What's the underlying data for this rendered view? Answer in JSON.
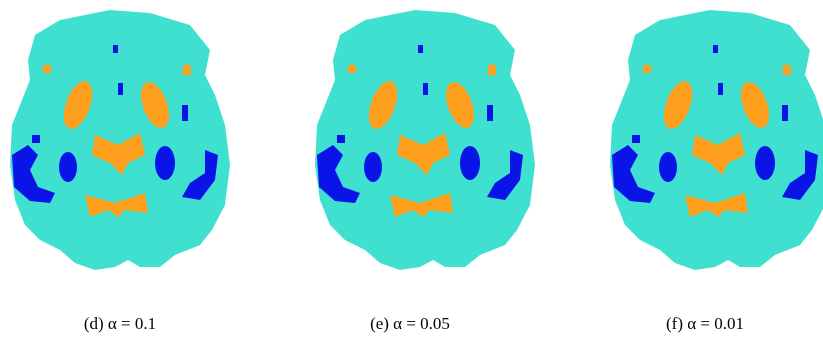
{
  "panels": [
    {
      "caption": "(d) α = 0.1"
    },
    {
      "caption": "(e) α = 0.05"
    },
    {
      "caption": "(f) α = 0.01"
    }
  ]
}
